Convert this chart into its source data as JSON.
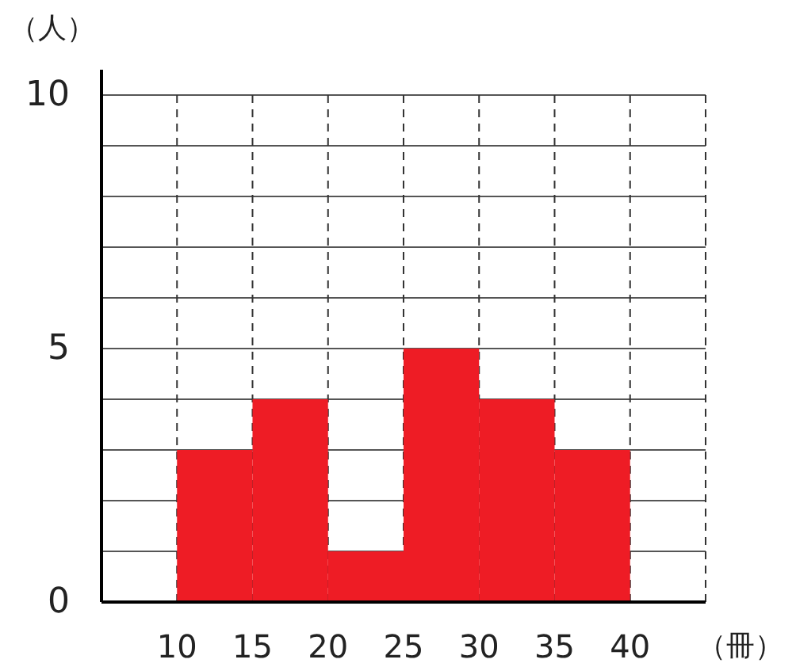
{
  "chart_data": {
    "type": "histogram",
    "ylabel": "（人）",
    "xlabel": "（冊）",
    "bins": [
      10,
      15,
      20,
      25,
      30,
      35,
      40
    ],
    "values": [
      3,
      4,
      1,
      5,
      4,
      3
    ],
    "color": "#ee1c25",
    "xlim": [
      5,
      45
    ],
    "xticks": [
      10,
      15,
      20,
      25,
      30,
      35,
      40,
      {
        "value": 45,
        "label": null
      }
    ],
    "ylim": [
      0,
      10
    ],
    "yticks": [
      0,
      {
        "value": 1,
        "label": null
      },
      {
        "value": 2,
        "label": null
      },
      {
        "value": 3,
        "label": null
      },
      {
        "value": 4,
        "label": null
      },
      5,
      {
        "value": 6,
        "label": null
      },
      {
        "value": 7,
        "label": null
      },
      {
        "value": 8,
        "label": null
      },
      {
        "value": 9,
        "label": null
      },
      10
    ],
    "grid": true
  }
}
